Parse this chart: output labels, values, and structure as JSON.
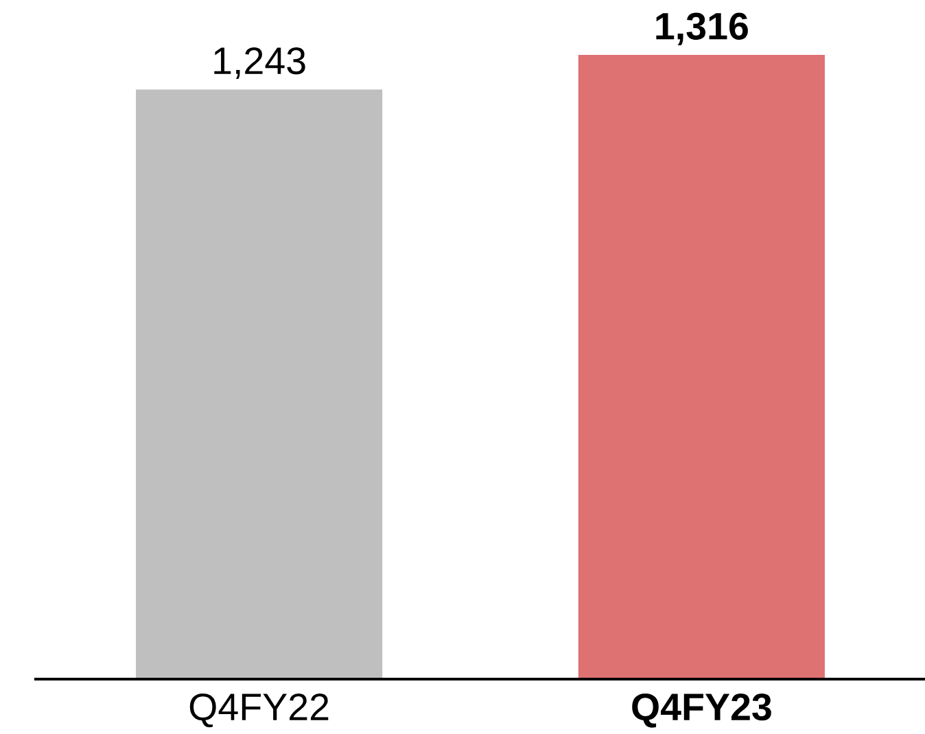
{
  "chart_data": {
    "type": "bar",
    "categories": [
      "Q4FY22",
      "Q4FY23"
    ],
    "values": [
      1243,
      1316
    ],
    "colors": [
      "#bfbfbf",
      "#de7172"
    ],
    "value_labels": [
      "1,243",
      "1,316"
    ]
  }
}
